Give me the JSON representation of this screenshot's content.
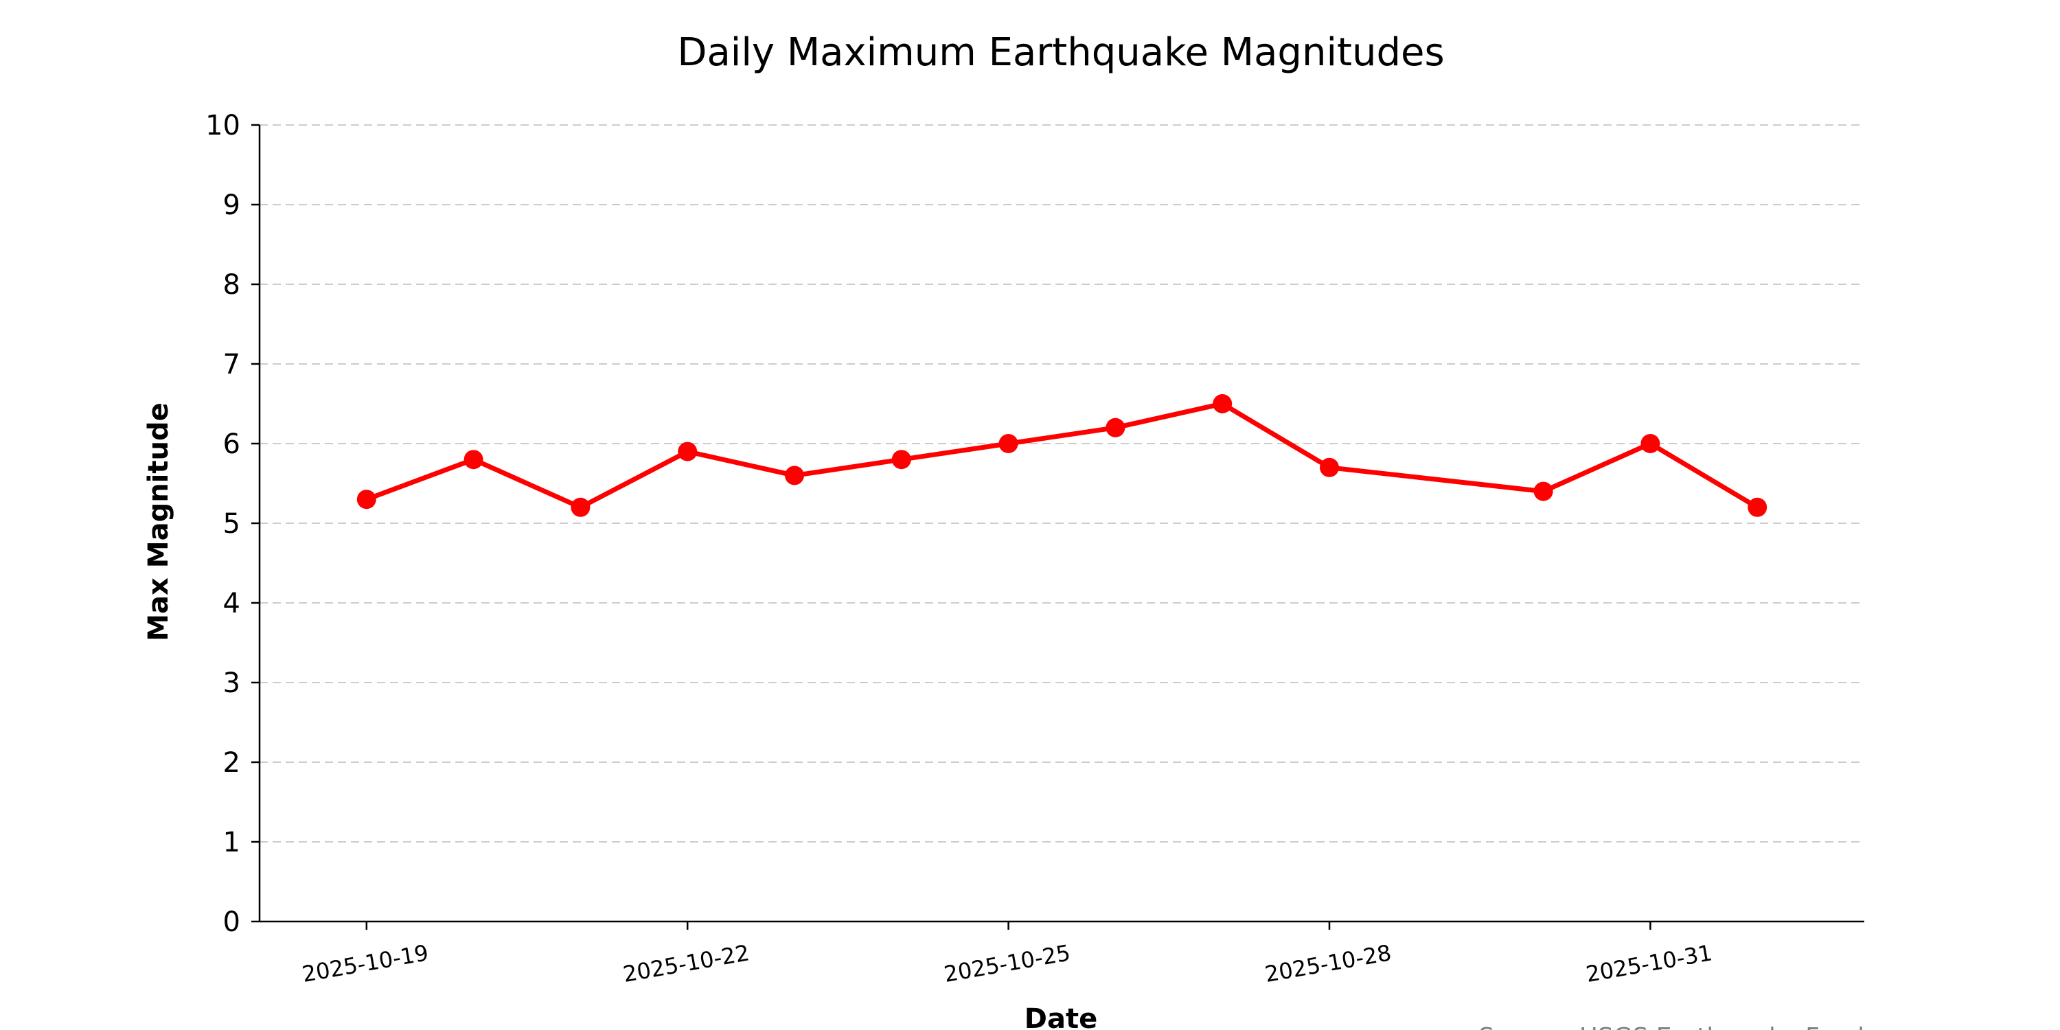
{
  "chart_data": {
    "type": "line",
    "title": "Daily Maximum Earthquake Magnitudes",
    "xlabel": "Date",
    "ylabel": "Max Magnitude",
    "source": "Source: USGS Earthquake Feed",
    "x": [
      "2025-10-19",
      "2025-10-20",
      "2025-10-21",
      "2025-10-22",
      "2025-10-23",
      "2025-10-24",
      "2025-10-25",
      "2025-10-26",
      "2025-10-27",
      "2025-10-28",
      "2025-10-30",
      "2025-10-31",
      "2025-11-01"
    ],
    "y": [
      5.3,
      5.8,
      5.2,
      5.9,
      5.6,
      5.8,
      6.0,
      6.2,
      6.5,
      5.7,
      5.4,
      6.0,
      5.2
    ],
    "xticks": [
      "2025-10-19",
      "2025-10-22",
      "2025-10-25",
      "2025-10-28",
      "2025-10-31"
    ],
    "xlim": [
      "2025-10-18",
      "2025-11-02"
    ],
    "ylim": [
      0,
      10
    ],
    "yticks": [
      0,
      1,
      2,
      3,
      4,
      5,
      6,
      7,
      8,
      9,
      10
    ],
    "grid": "horizontal-dashed",
    "legend": "none",
    "line_color": "#ff0000",
    "grid_color": "#cccccc",
    "source_color": "#808080"
  }
}
